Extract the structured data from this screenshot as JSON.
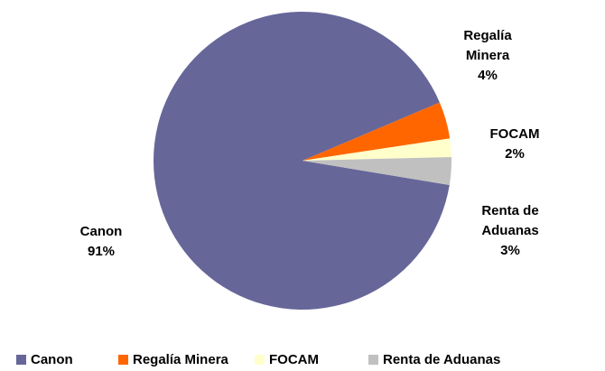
{
  "chart_data": {
    "type": "pie",
    "categories": [
      "Canon",
      "Regalía Minera",
      "FOCAM",
      "Renta de Aduanas"
    ],
    "values": [
      91,
      4,
      2,
      3
    ],
    "value_labels": [
      "91%",
      "4%",
      "2%",
      "3%"
    ],
    "colors": [
      "#666699",
      "#ff6600",
      "#ffffcc",
      "#c0c0c0"
    ],
    "legend": "bottom"
  }
}
